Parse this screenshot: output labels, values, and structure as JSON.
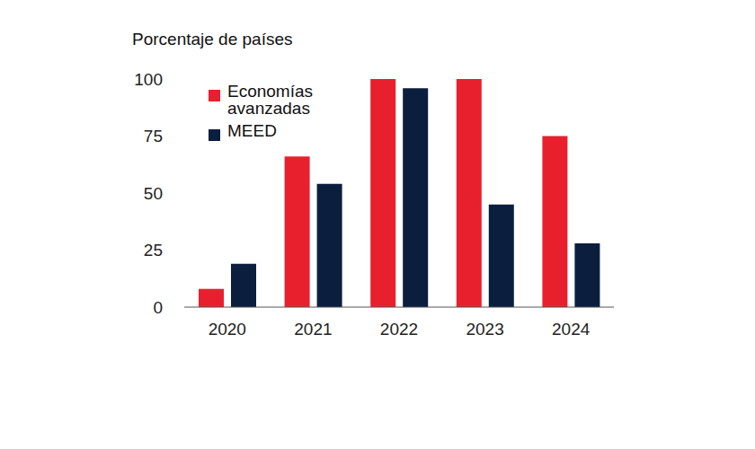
{
  "chart_data": {
    "type": "bar",
    "y_label": "Porcentaje de países",
    "categories": [
      "2020",
      "2021",
      "2022",
      "2023",
      "2024"
    ],
    "series": [
      {
        "name": "Economías avanzadas",
        "color": "#e8202e",
        "values": [
          8,
          66,
          100,
          100,
          75
        ]
      },
      {
        "name": "MEED",
        "color": "#0b1e3d",
        "values": [
          19,
          54,
          96,
          45,
          28
        ]
      }
    ],
    "ylim": [
      0,
      100
    ],
    "yticks": [
      0,
      25,
      50,
      75,
      100
    ],
    "grid": false,
    "legend": "upper left"
  }
}
